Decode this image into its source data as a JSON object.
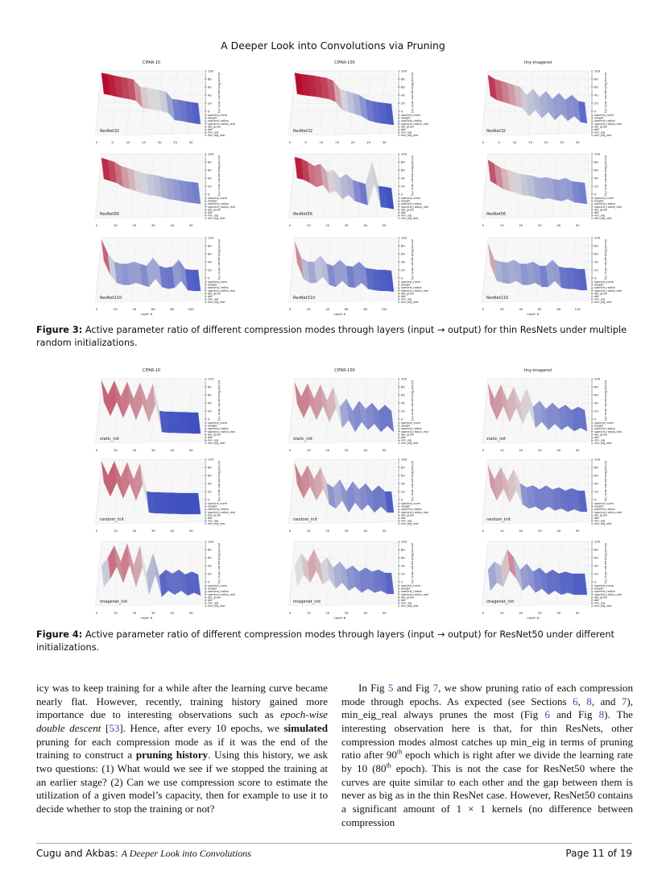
{
  "header": {
    "running_title": "A Deeper Look into Convolutions via Pruning"
  },
  "figure3": {
    "column_titles": [
      "CIFAR-10",
      "CIFAR-100",
      "tiny-imagenet"
    ],
    "caption_label": "Figure 3:",
    "caption_text": " Active parameter ratio of different compression modes through layers (input → output) for thin ResNets under multiple random initializations."
  },
  "figure4": {
    "column_titles": [
      "CIFAR-10",
      "CIFAR-100",
      "tiny-imagenet"
    ],
    "caption_label": "Figure 4:",
    "caption_text": " Active parameter ratio of different compression modes through layers (input → output) for ResNet50 under different initializations."
  },
  "axis": {
    "z_label": "Active/Total param ratio (%)",
    "z_ticks": [
      "0",
      "20",
      "40",
      "60",
      "80",
      "100"
    ],
    "modes": [
      "spectral_norm",
      "weight",
      "spectral_radius",
      "spectral_radius_real",
      "det_gram",
      "det",
      "min_eig",
      "min_eig_real"
    ],
    "x_label": "Layer #"
  },
  "chart_data": [
    {
      "type": "area",
      "figure": "3",
      "title": "CIFAR-10",
      "label": "ResNet32",
      "x_ticks": [
        0,
        5,
        10,
        15,
        20,
        25,
        30
      ],
      "layers": 33,
      "active_ratio": [
        95,
        92,
        88,
        85,
        82,
        78,
        60,
        58,
        55,
        52,
        48,
        30,
        28,
        25,
        22,
        20
      ]
    },
    {
      "type": "area",
      "figure": "3",
      "title": "CIFAR-100",
      "label": "ResNet32",
      "x_ticks": [
        0,
        5,
        10,
        15,
        20,
        25,
        30
      ],
      "layers": 33,
      "active_ratio": [
        95,
        92,
        90,
        88,
        85,
        82,
        75,
        55,
        50,
        45,
        40,
        30,
        25,
        22,
        20,
        18
      ]
    },
    {
      "type": "area",
      "figure": "3",
      "title": "tiny-imagenet",
      "label": "ResNet32",
      "x_ticks": [
        0,
        5,
        10,
        15,
        20,
        25,
        30
      ],
      "layers": 33,
      "active_ratio": [
        90,
        80,
        75,
        70,
        65,
        60,
        40,
        55,
        35,
        50,
        30,
        45,
        28,
        40,
        25,
        22
      ]
    },
    {
      "type": "area",
      "figure": "3",
      "label": "ResNet56",
      "x_ticks": [
        0,
        10,
        20,
        30,
        40,
        50
      ],
      "layers": 57,
      "active_ratio": [
        90,
        85,
        80,
        70,
        65,
        60,
        55,
        50,
        48,
        45,
        40,
        38,
        35,
        32,
        30,
        28
      ]
    },
    {
      "type": "area",
      "figure": "3",
      "label": "ResNet56",
      "x_ticks": [
        0,
        10,
        20,
        30,
        40,
        50
      ],
      "layers": 57,
      "active_ratio": [
        92,
        88,
        80,
        70,
        75,
        55,
        60,
        40,
        50,
        35,
        30,
        25,
        80,
        20,
        18,
        15
      ]
    },
    {
      "type": "area",
      "figure": "3",
      "label": "ResNet56",
      "x_ticks": [
        0,
        10,
        20,
        30,
        40,
        50
      ],
      "layers": 57,
      "active_ratio": [
        85,
        75,
        65,
        60,
        55,
        50,
        48,
        45,
        40,
        42,
        38,
        35,
        40,
        32,
        30,
        28
      ]
    },
    {
      "type": "area",
      "figure": "3",
      "label": "ResNet110",
      "x_ticks": [
        0,
        20,
        40,
        60,
        80,
        100
      ],
      "layers": 111,
      "x_label": "Layer #",
      "active_ratio": [
        95,
        60,
        40,
        35,
        35,
        40,
        35,
        30,
        50,
        30,
        25,
        28,
        45,
        22,
        20,
        20
      ]
    },
    {
      "type": "area",
      "figure": "3",
      "label": "ResNet110",
      "x_ticks": [
        0,
        20,
        40,
        60,
        80,
        100
      ],
      "layers": 111,
      "x_label": "Layer #",
      "active_ratio": [
        90,
        50,
        40,
        40,
        55,
        35,
        30,
        45,
        30,
        28,
        40,
        25,
        22,
        20,
        20,
        18
      ]
    },
    {
      "type": "area",
      "figure": "3",
      "label": "ResNet110",
      "x_ticks": [
        0,
        20,
        40,
        60,
        80,
        100
      ],
      "layers": 111,
      "x_label": "Layer #",
      "active_ratio": [
        85,
        45,
        40,
        38,
        45,
        35,
        35,
        40,
        30,
        30,
        45,
        28,
        25,
        25,
        22,
        22
      ]
    },
    {
      "type": "area",
      "figure": "4",
      "title": "CIFAR-10",
      "label": "static_init",
      "x_ticks": [
        0,
        10,
        20,
        30,
        40,
        50
      ],
      "layers": 54,
      "active_ratio": [
        95,
        60,
        95,
        55,
        92,
        50,
        90,
        45,
        88,
        20,
        18,
        18,
        17,
        17,
        16,
        16
      ]
    },
    {
      "type": "area",
      "figure": "4",
      "title": "CIFAR-100",
      "label": "static_init",
      "x_ticks": [
        0,
        10,
        20,
        30,
        40,
        50
      ],
      "layers": 54,
      "active_ratio": [
        90,
        55,
        88,
        50,
        85,
        45,
        80,
        30,
        50,
        20,
        45,
        25,
        40,
        20,
        35,
        20
      ]
    },
    {
      "type": "area",
      "figure": "4",
      "title": "tiny-imagenet",
      "label": "static_init",
      "x_ticks": [
        0,
        10,
        20,
        30,
        40,
        50
      ],
      "layers": 54,
      "active_ratio": [
        88,
        50,
        85,
        45,
        80,
        40,
        75,
        30,
        45,
        25,
        40,
        25,
        35,
        22,
        30,
        22
      ]
    },
    {
      "type": "area",
      "figure": "4",
      "label": "random_init",
      "x_ticks": [
        0,
        10,
        20,
        30,
        40,
        50
      ],
      "layers": 54,
      "active_ratio": [
        95,
        60,
        95,
        55,
        92,
        50,
        90,
        20,
        18,
        18,
        17,
        17,
        16,
        16,
        16,
        16
      ]
    },
    {
      "type": "area",
      "figure": "4",
      "label": "random_init",
      "x_ticks": [
        0,
        10,
        20,
        30,
        40,
        50
      ],
      "layers": 54,
      "active_ratio": [
        90,
        55,
        85,
        50,
        80,
        40,
        30,
        50,
        20,
        45,
        25,
        40,
        20,
        35,
        20,
        20
      ]
    },
    {
      "type": "area",
      "figure": "4",
      "label": "random_init",
      "x_ticks": [
        0,
        10,
        20,
        30,
        40,
        50
      ],
      "layers": 54,
      "active_ratio": [
        85,
        50,
        80,
        45,
        75,
        40,
        30,
        35,
        25,
        35,
        25,
        30,
        22,
        28,
        22,
        22
      ]
    },
    {
      "type": "area",
      "figure": "4",
      "label": "imagenet_init",
      "x_ticks": [
        0,
        10,
        20,
        30,
        40,
        50
      ],
      "layers": 54,
      "x_label": "Layer #",
      "active_ratio": [
        40,
        60,
        90,
        50,
        95,
        40,
        90,
        20,
        70,
        15,
        30,
        20,
        30,
        18,
        25,
        18
      ]
    },
    {
      "type": "area",
      "figure": "4",
      "label": "imagenet_init",
      "x_ticks": [
        0,
        10,
        20,
        30,
        40,
        50
      ],
      "layers": 54,
      "x_label": "Layer #",
      "active_ratio": [
        40,
        70,
        50,
        80,
        45,
        60,
        35,
        50,
        30,
        40,
        25,
        35,
        25,
        30,
        22,
        22
      ]
    },
    {
      "type": "area",
      "figure": "4",
      "label": "imagenet_init",
      "x_ticks": [
        0,
        10,
        20,
        30,
        40,
        50
      ],
      "layers": 54,
      "x_label": "Layer #",
      "active_ratio": [
        30,
        50,
        40,
        80,
        60,
        30,
        45,
        25,
        35,
        20,
        30,
        20,
        25,
        20,
        20,
        20
      ]
    }
  ],
  "colors": {
    "high": "#b40426",
    "mid": "#dddddd",
    "low": "#3b4cc0",
    "link": "#3a52b0"
  },
  "body": {
    "left": {
      "t1": "icy was to keep training for a while after the learning curve became nearly flat. However, recently, training history gained more importance due to interesting observations such as ",
      "t2": "epoch-wise double descent",
      "t3": " [",
      "ref53": "53",
      "t4": "]. Hence, after every 10 epochs, we ",
      "b1": "simulated",
      "t5": " pruning for each compression mode as if it was the end of the training to construct a ",
      "b2": "pruning history",
      "t6": ". Using this history, we ask two questions: (1) What would we see if we stopped the training at an earlier stage? (2) Can we use compression score to estimate the utilization of a given model’s capacity, then for example to use it to decide whether to stop the training or not?"
    },
    "right": {
      "t1": "In Fig ",
      "r5": "5",
      "t2": " and Fig ",
      "r7": "7",
      "t3": ", we show pruning ratio of each compression mode through epochs. As expected (see Sections ",
      "s6": "6",
      "t4": ", ",
      "s8": "8",
      "t5": ", and ",
      "s7": "7",
      "t6": "), min_eig_real always prunes the most (Fig ",
      "f6": "6",
      "t7": " and Fig ",
      "f8": "8",
      "t8": "). The interesting observation here is that, for thin ResNets, other compression modes almost catches up min_eig in terms of pruning ratio after 90",
      "sup1": "th",
      "t9": " epoch which is right after we divide the learning rate by 10 (80",
      "sup2": "th",
      "t10": " epoch). This is not the case for ResNet50 where the curves are quite similar to each other and the gap between them is never as big as in the thin ResNet case. However, ResNet50 contains a significant amount of 1 × 1 kernels (no difference between compression"
    }
  },
  "footer": {
    "authors": "Cugu and Akbas: ",
    "short_title": "A Deeper Look into Convolutions",
    "page": "Page 11 of 19"
  }
}
